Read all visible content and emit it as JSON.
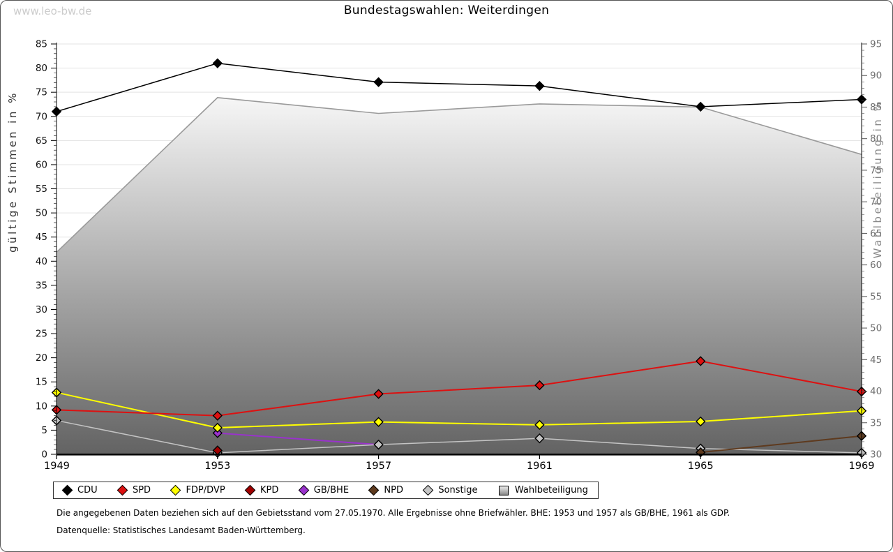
{
  "watermark": "www.leo-bw.de",
  "title": "Bundestagswahlen: Weiterdingen",
  "footnotes": {
    "line1": "Die angegebenen Daten beziehen sich auf den Gebietsstand vom 27.05.1970. Alle Ergebnisse ohne Briefwähler. BHE: 1953 und 1957 als GB/BHE, 1961 als GDP.",
    "line2": "Datenquelle: Statistisches Landesamt Baden-Württemberg."
  },
  "chart_data": {
    "type": "line",
    "title": "Bundestagswahlen: Weiterdingen",
    "x_labels": [
      "1949",
      "1953",
      "1957",
      "1961",
      "1965",
      "1969"
    ],
    "x_values": [
      1949,
      1953,
      1957,
      1961,
      1965,
      1969
    ],
    "left_axis": {
      "label": "gültige Stimmen in %",
      "min": 0,
      "max": 85,
      "major_step": 5,
      "minor_step": 1
    },
    "right_axis": {
      "label": "Wahlbeteiligung in %",
      "min": 30,
      "max": 95,
      "major_step": 5,
      "minor_step": 1
    },
    "grid": "horizontal",
    "legend_position": "bottom",
    "series": [
      {
        "name": "CDU",
        "axis": "left",
        "marker": "diamond",
        "color": "#000000",
        "values": [
          71,
          81,
          77.1,
          76.3,
          72,
          73.5
        ]
      },
      {
        "name": "SPD",
        "axis": "left",
        "marker": "diamond",
        "color": "#dd1111",
        "values": [
          9.2,
          8,
          12.5,
          14.3,
          19.3,
          13
        ]
      },
      {
        "name": "FDP/DVP",
        "axis": "left",
        "marker": "diamond",
        "color": "#ffff00",
        "values": [
          12.8,
          5.5,
          6.7,
          6.1,
          6.8,
          9
        ]
      },
      {
        "name": "KPD",
        "axis": "left",
        "marker": "diamond",
        "color": "#a00000",
        "values": [
          null,
          0.8,
          null,
          null,
          null,
          null
        ]
      },
      {
        "name": "GB/BHE",
        "axis": "left",
        "marker": "diamond",
        "color": "#9932cc",
        "values": [
          null,
          4.4,
          2,
          null,
          null,
          null
        ]
      },
      {
        "name": "NPD",
        "axis": "left",
        "marker": "diamond",
        "color": "#5e3a1e",
        "values": [
          null,
          null,
          null,
          null,
          0.4,
          3.8
        ]
      },
      {
        "name": "Sonstige",
        "axis": "left",
        "marker": "diamond",
        "color": "#c4c4c4",
        "values": [
          7,
          0.3,
          2,
          3.3,
          1.2,
          0.3
        ]
      },
      {
        "name": "Wahlbeteiligung",
        "axis": "right",
        "marker": "square",
        "type": "area",
        "color": "#9a9a9a",
        "area_gradient_top": "#f6f6f6",
        "area_gradient_bottom": "#636363",
        "values": [
          62,
          86.5,
          84,
          85.5,
          85,
          77.5
        ]
      }
    ]
  }
}
